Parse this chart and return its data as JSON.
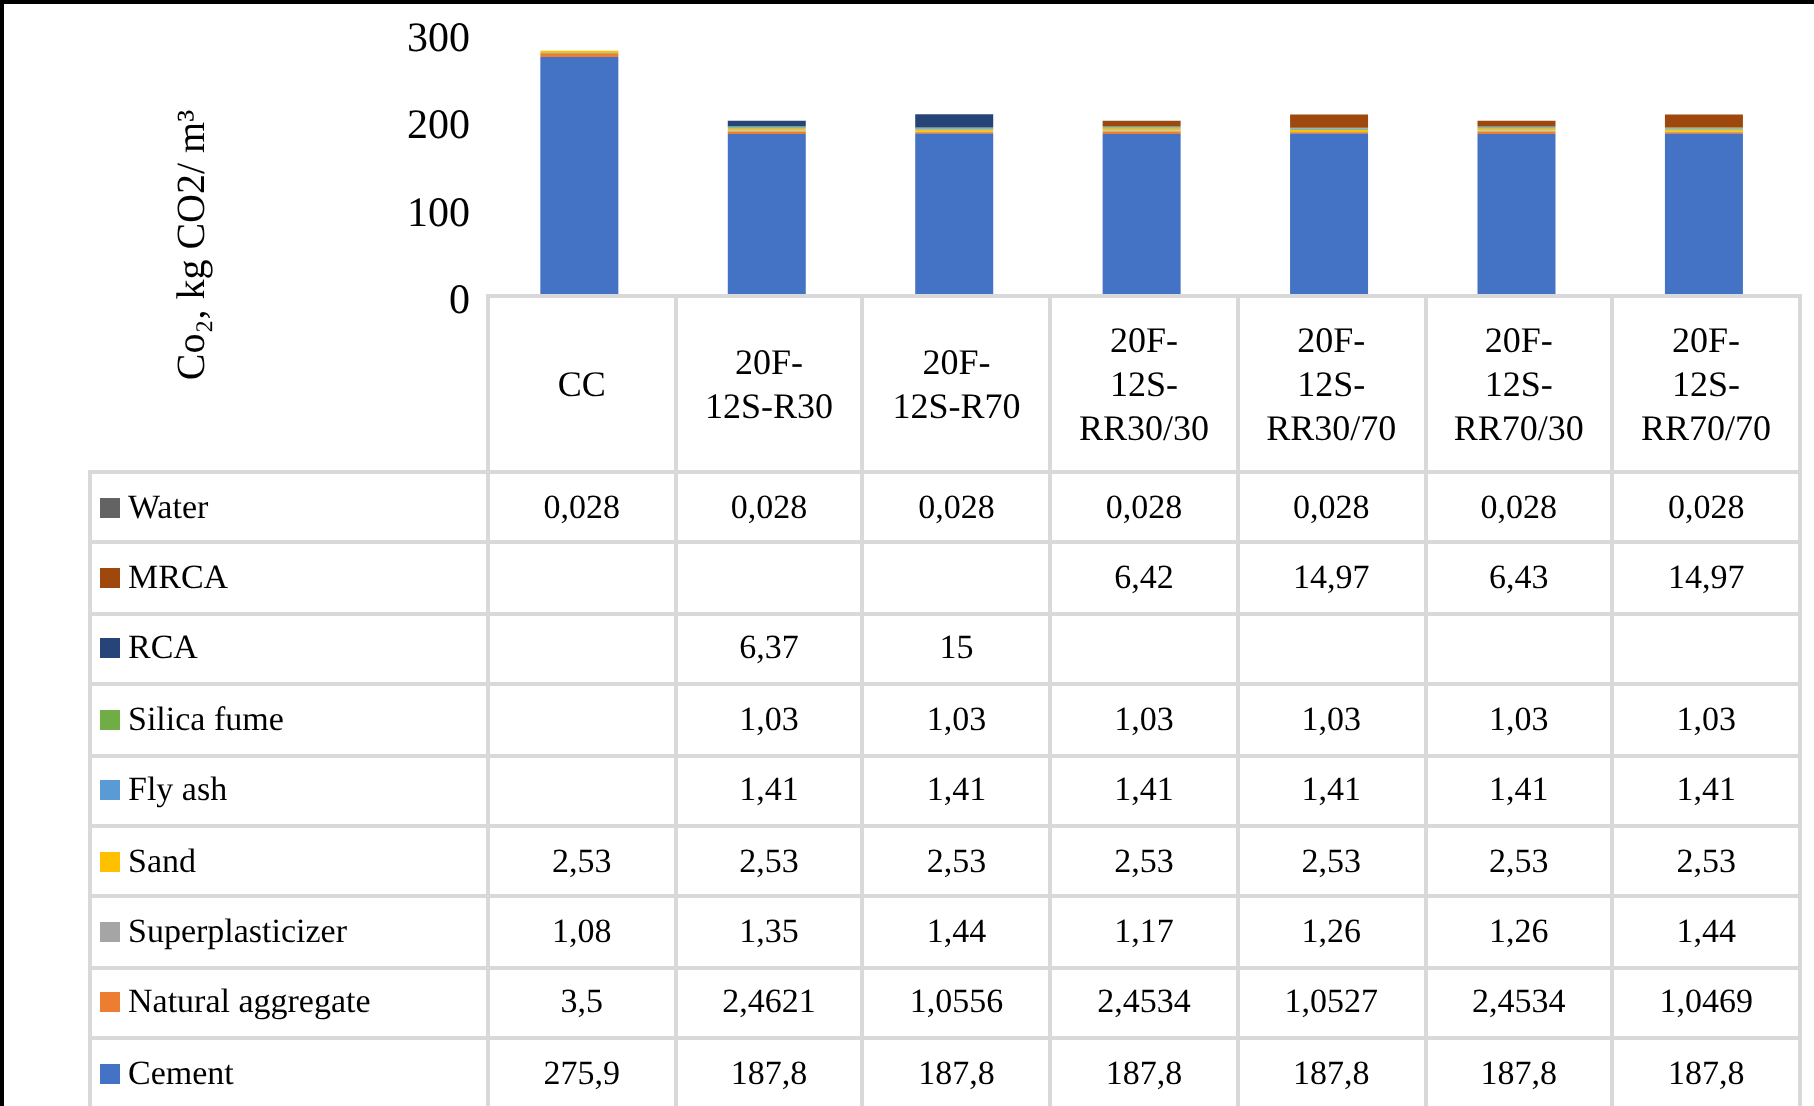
{
  "chart_data": {
    "type": "bar",
    "stacked": true,
    "ylabel": "Co₂, kg CO2/ m³",
    "categories": [
      "CC",
      "20F-12S-R30",
      "20F-12S-R70",
      "20F-12S-RR30/30",
      "20F-12S-RR30/70",
      "20F-12S-RR70/30",
      "20F-12S-RR70/70"
    ],
    "ylim": [
      0,
      300
    ],
    "yticks": [
      0,
      100,
      200,
      300
    ],
    "grid": false,
    "legend": "bottom",
    "series": [
      {
        "name": "Cement",
        "color": "#4472c4",
        "values": [
          275.9,
          187.8,
          187.8,
          187.8,
          187.8,
          187.8,
          187.8
        ],
        "value_labels": [
          "275,9",
          "187,8",
          "187,8",
          "187,8",
          "187,8",
          "187,8",
          "187,8"
        ]
      },
      {
        "name": "Natural aggregate",
        "color": "#ed7d31",
        "values": [
          3.5,
          2.4621,
          1.0556,
          2.4534,
          1.0527,
          2.4534,
          1.0469
        ],
        "value_labels": [
          "3,5",
          "2,4621",
          "1,0556",
          "2,4534",
          "1,0527",
          "2,4534",
          "1,0469"
        ]
      },
      {
        "name": "Superplasticizer",
        "color": "#a5a5a5",
        "values": [
          1.08,
          1.35,
          1.44,
          1.17,
          1.26,
          1.26,
          1.44
        ],
        "value_labels": [
          "1,08",
          "1,35",
          "1,44",
          "1,17",
          "1,26",
          "1,26",
          "1,44"
        ]
      },
      {
        "name": "Sand",
        "color": "#ffc000",
        "values": [
          2.53,
          2.53,
          2.53,
          2.53,
          2.53,
          2.53,
          2.53
        ],
        "value_labels": [
          "2,53",
          "2,53",
          "2,53",
          "2,53",
          "2,53",
          "2,53",
          "2,53"
        ]
      },
      {
        "name": "Fly ash",
        "color": "#5b9bd5",
        "values": [
          null,
          1.41,
          1.41,
          1.41,
          1.41,
          1.41,
          1.41
        ],
        "value_labels": [
          null,
          "1,41",
          "1,41",
          "1,41",
          "1,41",
          "1,41",
          "1,41"
        ]
      },
      {
        "name": "Silica fume",
        "color": "#70ad47",
        "values": [
          null,
          1.03,
          1.03,
          1.03,
          1.03,
          1.03,
          1.03
        ],
        "value_labels": [
          null,
          "1,03",
          "1,03",
          "1,03",
          "1,03",
          "1,03",
          "1,03"
        ]
      },
      {
        "name": "RCA",
        "color": "#264478",
        "values": [
          null,
          6.37,
          15,
          null,
          null,
          null,
          null
        ],
        "value_labels": [
          null,
          "6,37",
          "15",
          null,
          null,
          null,
          null
        ]
      },
      {
        "name": "MRCA",
        "color": "#9e480e",
        "values": [
          null,
          null,
          null,
          6.42,
          14.97,
          6.43,
          14.97
        ],
        "value_labels": [
          null,
          null,
          null,
          "6,42",
          "14,97",
          "6,43",
          "14,97"
        ]
      },
      {
        "name": "Water",
        "color": "#636363",
        "values": [
          0.028,
          0.028,
          0.028,
          0.028,
          0.028,
          0.028,
          0.028
        ],
        "value_labels": [
          "0,028",
          "0,028",
          "0,028",
          "0,028",
          "0,028",
          "0,028",
          "0,028"
        ]
      }
    ]
  }
}
